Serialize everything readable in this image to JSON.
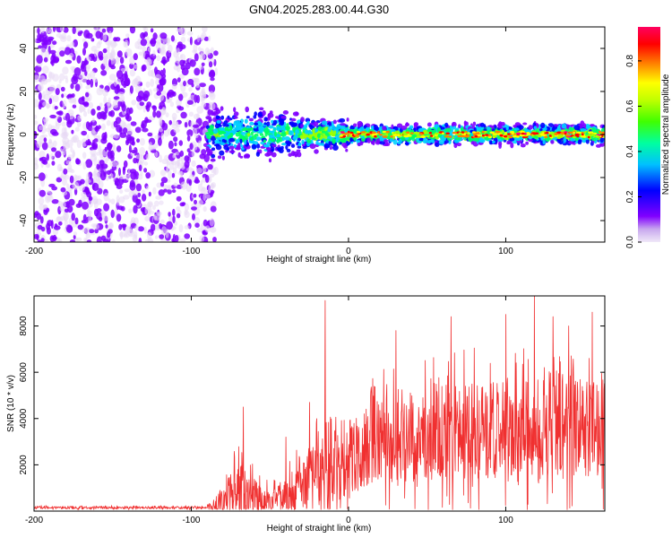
{
  "title": "GN04.2025.283.00.44.G30",
  "chart_data": [
    {
      "type": "heatmap",
      "title": "GN04.2025.283.00.44.G30",
      "xlabel": "Height of straight line (km)",
      "ylabel": "Frequency (Hz)",
      "xlim": [
        -200,
        163
      ],
      "ylim": [
        -50,
        50
      ],
      "xticks": [
        -200,
        -100,
        0,
        100
      ],
      "yticks": [
        -40,
        -20,
        0,
        20,
        40
      ],
      "noise_region_x": [
        -200,
        -88
      ],
      "signal_line_freq": 0,
      "colorbar": {
        "label": "Normalized spectral amplitude",
        "range": [
          0,
          0.95
        ],
        "ticks": [
          0.0,
          0.2,
          0.4,
          0.6,
          0.8
        ],
        "colors": [
          "#e8d8f4",
          "#8000ff",
          "#0000ff",
          "#00d0ff",
          "#00ff60",
          "#a0ff00",
          "#ffff00",
          "#ff8000",
          "#ff0000",
          "#ff0080"
        ]
      }
    },
    {
      "type": "line",
      "xlabel": "Height of straight line (km)",
      "ylabel": "SNR (10 * v/v)",
      "xlim": [
        -200,
        163
      ],
      "ylim": [
        0,
        9300
      ],
      "xticks": [
        -200,
        -100,
        0,
        100
      ],
      "yticks": [
        2000,
        4000,
        6000,
        8000
      ],
      "line_color": "#f03030",
      "envelope": {
        "x": [
          -200,
          -90,
          -85,
          -80,
          -75,
          -70,
          -68,
          -65,
          -62,
          -58,
          -55,
          -50,
          -45,
          -40,
          -35,
          -30,
          -25,
          -20,
          -17,
          -14,
          -10,
          -5,
          0,
          10,
          20,
          30,
          40,
          50,
          60,
          70,
          80,
          90,
          100,
          110,
          120,
          130,
          140,
          150,
          163
        ],
        "base": [
          150,
          150,
          250,
          400,
          600,
          800,
          900,
          800,
          700,
          600,
          500,
          450,
          500,
          600,
          800,
          1000,
          1200,
          1400,
          1500,
          1600,
          1800,
          2000,
          2300,
          2700,
          3000,
          3200,
          3300,
          3400,
          3500,
          3500,
          3500,
          3500,
          3600,
          3600,
          3600,
          3600,
          3600,
          3600,
          3600
        ],
        "amp": [
          80,
          80,
          400,
          1000,
          1400,
          1800,
          2000,
          1500,
          1200,
          1000,
          800,
          700,
          800,
          1000,
          1400,
          1800,
          2000,
          2200,
          2400,
          2400,
          2400,
          2400,
          2300,
          2400,
          2600,
          2800,
          3000,
          3000,
          3000,
          3000,
          3000,
          3000,
          3000,
          3000,
          3000,
          3000,
          3000,
          3000,
          3000
        ]
      },
      "peaks": [
        {
          "x": -67,
          "y": 4500
        },
        {
          "x": -40,
          "y": 3200
        },
        {
          "x": -25,
          "y": 4700
        },
        {
          "x": -15,
          "y": 9100
        },
        {
          "x": 30,
          "y": 7800
        },
        {
          "x": 65,
          "y": 8400
        },
        {
          "x": 100,
          "y": 8500
        },
        {
          "x": 118,
          "y": 9300
        },
        {
          "x": 130,
          "y": 8400
        },
        {
          "x": 140,
          "y": 8000
        },
        {
          "x": 155,
          "y": 8600
        }
      ]
    }
  ]
}
